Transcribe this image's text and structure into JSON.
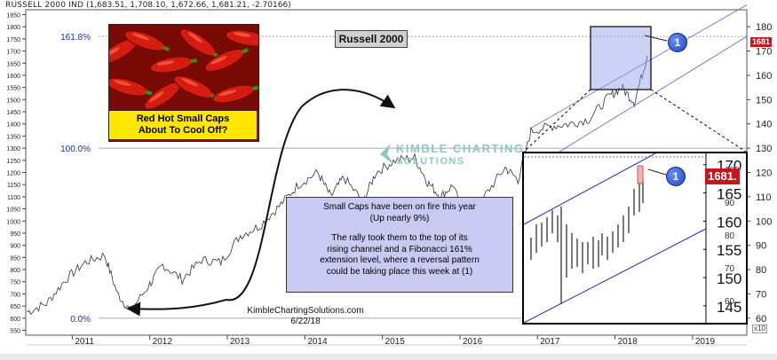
{
  "header": {
    "title": "RUSSELL 2000 IND",
    "ohlc": "(1,683.51, 1,708.10, 1,672.66, 1,681.21, -2.70166)"
  },
  "main_title": "Russell 2000",
  "image_caption": [
    "Red Hot Small Caps",
    "About To Cool Off?"
  ],
  "textbox": {
    "p1": [
      "Small Caps have been on fire this year",
      "(Up nearly 9%)"
    ],
    "p2": [
      "The rally took them to the top of its",
      "rising channel and a Fibonacci 161%",
      "extension level, where a reversal pattern",
      "could be taking place this week at (1)"
    ]
  },
  "credit": [
    "KimbleChartingSolutions.com",
    "6/22/18"
  ],
  "logo": [
    "KIMBLE CHARTING",
    "SOLUTIONS"
  ],
  "markers": {
    "circle_label": "1",
    "price_tag": "1681",
    "inset_price_tag": "1681.",
    "multiplier": "x10"
  },
  "chart_data": {
    "type": "line",
    "title": "Russell 2000",
    "x": [
      "2010-06",
      "2010-09",
      "2010-12",
      "2011-03",
      "2011-06",
      "2011-08",
      "2011-10",
      "2012-01",
      "2012-03",
      "2012-06",
      "2012-09",
      "2012-12",
      "2013-03",
      "2013-06",
      "2013-09",
      "2013-12",
      "2014-03",
      "2014-05",
      "2014-07",
      "2014-10",
      "2014-12",
      "2015-03",
      "2015-06",
      "2015-08",
      "2015-10",
      "2015-12",
      "2016-02",
      "2016-05",
      "2016-08",
      "2016-10",
      "2016-12",
      "2017-03",
      "2017-06",
      "2017-09",
      "2017-12",
      "2018-02",
      "2018-04",
      "2018-06"
    ],
    "series": [
      {
        "values": [
          625,
          660,
          760,
          830,
          860,
          700,
          630,
          740,
          820,
          760,
          840,
          830,
          940,
          980,
          1060,
          1150,
          1200,
          1100,
          1180,
          1080,
          1200,
          1250,
          1260,
          1160,
          1100,
          1150,
          960,
          1110,
          1220,
          1170,
          1370,
          1390,
          1400,
          1420,
          1510,
          1550,
          1490,
          1681
        ]
      }
    ],
    "x_ticks": [
      "2011",
      "2012",
      "2013",
      "2014",
      "2015",
      "2016",
      "2017",
      "2018",
      "2019"
    ],
    "y_left_ticks": [
      550,
      600,
      650,
      700,
      750,
      800,
      850,
      900,
      950,
      1000,
      1050,
      1100,
      1150,
      1200,
      1250,
      1300,
      1350,
      1400,
      1450,
      1500,
      1550,
      1600,
      1650,
      1700,
      1750,
      1800,
      1850
    ],
    "y_right_ticks": [
      60,
      70,
      80,
      90,
      100,
      110,
      120,
      130,
      140,
      150,
      160,
      170,
      180
    ],
    "ylim": [
      530,
      1870
    ],
    "y_right_lim": [
      53,
      187
    ],
    "fib_levels": [
      {
        "label": "161.8%",
        "value": 1760
      },
      {
        "label": "100.0%",
        "value": 1300
      },
      {
        "label": "0.0%",
        "value": 600
      }
    ],
    "inset": {
      "y_ticks": [
        145,
        150,
        155,
        160,
        165,
        170
      ],
      "ylim": [
        142,
        172
      ],
      "y_alt_ticks": [
        60,
        70,
        80,
        90,
        100
      ]
    }
  }
}
